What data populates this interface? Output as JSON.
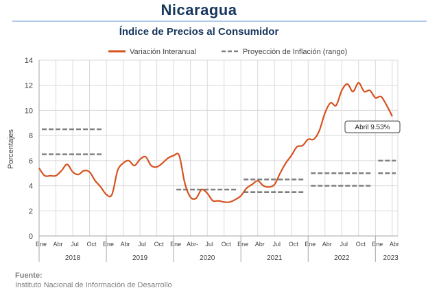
{
  "header": {
    "title": "Nicaragua",
    "subtitle": "Índice de Precios al Consumidor"
  },
  "source": {
    "label": "Fuente:",
    "text": "Instituto Nacional de Información de  Desarrollo"
  },
  "colors": {
    "title": "#17375e",
    "series": "#d6521e",
    "projection": "#7f7f7f",
    "grid": "#d9d9d9"
  },
  "chart_data": {
    "type": "line",
    "ylabel": "Porcentajes",
    "ylim": [
      0,
      14
    ],
    "yticks": [
      0,
      2,
      4,
      6,
      8,
      10,
      12,
      14
    ],
    "grid": true,
    "legend_position": "top",
    "month_tick_labels": [
      "Ene",
      "Abr",
      "Jul",
      "Oct",
      "Ene",
      "Abr",
      "Jul",
      "Oct",
      "Ene",
      "Abr-",
      "Jul",
      "Oct",
      "Ene",
      "Abr",
      "Jul",
      "Oct",
      "Ene",
      "Abr",
      "Jul",
      "Oct",
      "Ene",
      "Abr"
    ],
    "year_labels": [
      "2018",
      "2019",
      "2020",
      "2021",
      "2022",
      "2023"
    ],
    "series": [
      {
        "name": "Variación Interanual",
        "style": "solid",
        "x": [
          "2018-01",
          "2018-02",
          "2018-03",
          "2018-04",
          "2018-05",
          "2018-06",
          "2018-07",
          "2018-08",
          "2018-09",
          "2018-10",
          "2018-11",
          "2018-12",
          "2019-01",
          "2019-02",
          "2019-03",
          "2019-04",
          "2019-05",
          "2019-06",
          "2019-07",
          "2019-08",
          "2019-09",
          "2019-10",
          "2019-11",
          "2019-12",
          "2020-01",
          "2020-02",
          "2020-03",
          "2020-04",
          "2020-05",
          "2020-06",
          "2020-07",
          "2020-08",
          "2020-09",
          "2020-10",
          "2020-11",
          "2020-12",
          "2021-01",
          "2021-02",
          "2021-03",
          "2021-04",
          "2021-05",
          "2021-06",
          "2021-07",
          "2021-08",
          "2021-09",
          "2021-10",
          "2021-11",
          "2021-12",
          "2022-01",
          "2022-02",
          "2022-03",
          "2022-04",
          "2022-05",
          "2022-06",
          "2022-07",
          "2022-08",
          "2022-09",
          "2022-10",
          "2022-11",
          "2022-12",
          "2023-01",
          "2023-02",
          "2023-03",
          "2023-04"
        ],
        "values": [
          5.4,
          4.8,
          4.8,
          4.8,
          5.2,
          5.7,
          5.1,
          4.9,
          5.2,
          5.1,
          4.4,
          3.9,
          3.3,
          3.3,
          5.2,
          5.8,
          6.0,
          5.6,
          6.1,
          6.3,
          5.6,
          5.5,
          5.8,
          6.2,
          6.4,
          6.4,
          4.2,
          3.1,
          3.0,
          3.7,
          3.4,
          2.8,
          2.8,
          2.7,
          2.7,
          2.9,
          3.2,
          3.8,
          4.1,
          4.4,
          4.0,
          3.9,
          4.1,
          5.0,
          5.8,
          6.4,
          7.1,
          7.2,
          7.7,
          7.7,
          8.4,
          9.8,
          10.6,
          10.4,
          11.6,
          12.1,
          11.5,
          12.2,
          11.5,
          11.6,
          11.0,
          11.1,
          10.4,
          9.53
        ]
      },
      {
        "name": "Proyección de Inflación (rango)",
        "style": "dashed",
        "ranges": [
          {
            "year": "2018",
            "low": 6.5,
            "high": 8.5
          },
          {
            "year": "2020",
            "low": 3.7,
            "high": 3.7
          },
          {
            "year": "2021",
            "low": 3.5,
            "high": 4.5
          },
          {
            "year": "2022",
            "low": 4.0,
            "high": 5.0
          },
          {
            "year": "2023",
            "low": 5.0,
            "high": 6.0
          }
        ]
      }
    ],
    "annotations": [
      {
        "x": "2023-04",
        "y": 9.53,
        "text": "Abril 9.53%"
      }
    ]
  }
}
